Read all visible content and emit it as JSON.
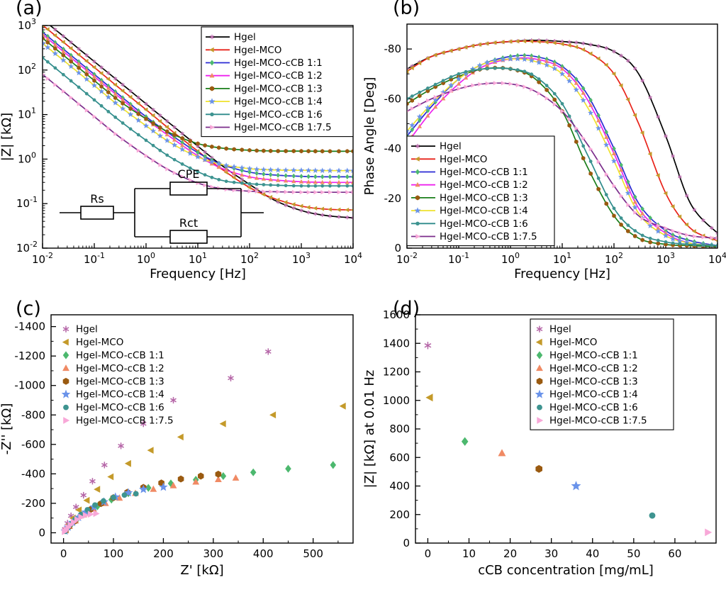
{
  "chart_data": {
    "type": "multi-panel",
    "background": "#ffffff",
    "series_styles": [
      {
        "name": "Hgel",
        "line_color": "#000000",
        "line_style": "solid",
        "marker": "asterisk",
        "marker_color": "#b565a7"
      },
      {
        "name": "Hgel-MCO",
        "line_color": "#e8231a",
        "line_style": "solid",
        "marker": "triangle-left",
        "marker_color": "#c49a2a"
      },
      {
        "name": "Hgel-MCO-cCB 1:1",
        "line_color": "#2a2ad4",
        "line_style": "solid",
        "marker": "diamond",
        "marker_color": "#4cb86e"
      },
      {
        "name": "Hgel-MCO-cCB 1:2",
        "line_color": "#ee22ee",
        "line_style": "solid",
        "marker": "triangle-up",
        "marker_color": "#f08a64"
      },
      {
        "name": "Hgel-MCO-cCB 1:3",
        "line_color": "#1a7e1a",
        "line_style": "solid",
        "marker": "hexagon",
        "marker_color": "#9a5a10"
      },
      {
        "name": "Hgel-MCO-cCB 1:4",
        "line_color": "#efe22e",
        "line_style": "solid",
        "marker": "star",
        "marker_color": "#6a93ea"
      },
      {
        "name": "Hgel-MCO-cCB 1:6",
        "line_color": "#2e8b8b",
        "line_style": "solid",
        "marker": "circle",
        "marker_color": "#3e9490"
      },
      {
        "name": "Hgel-MCO-cCB 1:7.5",
        "line_color": "#7b2d8b",
        "line_style": "solid",
        "marker": "triangle-right",
        "marker_color": "#f8a8d8"
      }
    ],
    "panels": [
      {
        "id": "a",
        "label": "(a)",
        "type": "line+scatter",
        "xlabel": "Frequency [Hz]",
        "ylabel": "|Z| [kΩ]",
        "x_axis": {
          "scale": "log",
          "min": 0.01,
          "max": 10000,
          "ticks": [
            -2,
            -1,
            0,
            1,
            2,
            3,
            4
          ],
          "tick_format": "pow10"
        },
        "y_axis": {
          "scale": "log",
          "min": 0.01,
          "max": 1000,
          "ticks": [
            -2,
            -1,
            0,
            1,
            2,
            3
          ],
          "tick_format": "pow10"
        },
        "legend_position": "top-right",
        "inset_circuit": {
          "labels": [
            "Rs",
            "CPE",
            "Rct"
          ]
        },
        "x": [
          0.01,
          0.03,
          0.1,
          0.3,
          1,
          3,
          10,
          30,
          100,
          300,
          1000,
          3000,
          10000
        ],
        "series": [
          {
            "y": [
              1380,
              490,
              155,
              55,
              17.4,
              6.1,
              1.95,
              0.7,
              0.27,
              0.12,
              0.07,
              0.054,
              0.048
            ]
          },
          {
            "y": [
              1020,
              360,
              115,
              40,
              12.9,
              4.5,
              1.51,
              0.58,
              0.23,
              0.13,
              0.088,
              0.075,
              0.072
            ]
          },
          {
            "y": [
              710,
              251,
              80,
              28,
              8.95,
              3.55,
              1.4,
              0.75,
              0.51,
              0.44,
              0.41,
              0.4,
              0.4
            ]
          },
          {
            "y": [
              630,
              222,
              71,
              25,
              7.9,
              3.1,
              1.19,
              0.61,
              0.4,
              0.34,
              0.31,
              0.3,
              0.3
            ]
          },
          {
            "y": [
              520,
              183,
              58,
              20.6,
              8.0,
              3.8,
              2.23,
              1.76,
              1.58,
              1.52,
              1.51,
              1.5,
              1.5
            ]
          },
          {
            "y": [
              400,
              141,
              45,
              15.8,
              5.6,
              2.32,
              1.12,
              0.75,
              0.61,
              0.57,
              0.56,
              0.55,
              0.55
            ]
          },
          {
            "y": [
              190,
              67,
              21.3,
              7.5,
              2.64,
              1.09,
              0.52,
              0.33,
              0.28,
              0.26,
              0.25,
              0.25,
              0.25
            ]
          },
          {
            "y": [
              80,
              28.3,
              9.0,
              3.2,
              1.19,
              0.54,
              0.29,
              0.215,
              0.19,
              0.185,
              0.18,
              0.18,
              0.18
            ]
          }
        ]
      },
      {
        "id": "b",
        "label": "(b)",
        "type": "line+scatter",
        "xlabel": "Frequency [Hz]",
        "ylabel": "Phase Angle [Deg]",
        "x_axis": {
          "scale": "log",
          "min": 0.01,
          "max": 10000,
          "ticks": [
            -2,
            -1,
            0,
            1,
            2,
            3,
            4
          ],
          "tick_format": "pow10"
        },
        "y_axis": {
          "scale": "linear",
          "min": 0,
          "max": -90,
          "ticks": [
            -80,
            -60,
            -40,
            -20,
            0
          ],
          "tick_format": "plain"
        },
        "legend_position": "bottom-left",
        "x": [
          0.01,
          0.03,
          0.1,
          0.3,
          1,
          3,
          10,
          30,
          100,
          300,
          1000,
          3000,
          10000
        ],
        "series": [
          {
            "y": [
              -72,
              -77,
              -80,
              -82,
              -83,
              -83.5,
              -83,
              -82,
              -79,
              -70,
              -45,
              -18,
              -6
            ]
          },
          {
            "y": [
              -71,
              -77,
              -80,
              -82,
              -83,
              -83,
              -82,
              -79,
              -70,
              -50,
              -22,
              -8,
              -3
            ]
          },
          {
            "y": [
              -45,
              -57,
              -68,
              -74,
              -77,
              -77,
              -73,
              -62,
              -40,
              -18,
              -7,
              -3,
              -1
            ]
          },
          {
            "y": [
              -42,
              -55,
              -66,
              -73,
              -76,
              -76,
              -72,
              -60,
              -38,
              -16,
              -6,
              -2,
              -1
            ]
          },
          {
            "y": [
              -58,
              -64,
              -69,
              -72,
              -72,
              -68,
              -55,
              -33,
              -13,
              -4,
              -1.5,
              -1,
              -0.5
            ]
          },
          {
            "y": [
              -47,
              -58,
              -68,
              -74,
              -76,
              -75,
              -70,
              -57,
              -35,
              -14,
              -5,
              -2,
              -1
            ]
          },
          {
            "y": [
              -60,
              -65,
              -70,
              -72,
              -72,
              -69,
              -58,
              -38,
              -16,
              -6,
              -2.5,
              -1.5,
              -1
            ]
          },
          {
            "y": [
              -55,
              -60,
              -64,
              -66,
              -66,
              -63,
              -55,
              -42,
              -25,
              -13,
              -8,
              -5,
              -4
            ]
          }
        ]
      },
      {
        "id": "c",
        "label": "(c)",
        "type": "scatter",
        "xlabel": "Z' [kΩ]",
        "ylabel": "-Z'' [kΩ]",
        "x_axis": {
          "scale": "linear",
          "min": -25,
          "max": 580,
          "ticks": [
            0,
            100,
            200,
            300,
            400,
            500
          ],
          "tick_format": "plain"
        },
        "y_axis": {
          "scale": "linear",
          "min": -70,
          "max": 1480,
          "ticks": [
            0,
            200,
            400,
            600,
            800,
            1000,
            1200,
            1400
          ],
          "tick_labels": [
            "0",
            "-200",
            "-400",
            "-600",
            "-800",
            "-1000",
            "-1200",
            "-1400"
          ],
          "tick_format": "plain"
        },
        "legend_position": "top-left",
        "series": [
          {
            "x": [
              3,
              8,
              15,
              25,
              40,
              58,
              82,
              115,
              160,
              220,
              335,
              410
            ],
            "y": [
              25,
              65,
              115,
              175,
              255,
              350,
              460,
              590,
              740,
              900,
              1050,
              1230
            ]
          },
          {
            "x": [
              4,
              10,
              19,
              31,
              47,
              68,
              95,
              130,
              175,
              235,
              320,
              420,
              560
            ],
            "y": [
              20,
              55,
              100,
              155,
              220,
              295,
              380,
              470,
              560,
              650,
              740,
              800,
              860
            ]
          },
          {
            "x": [
              5,
              14,
              27,
              45,
              68,
              96,
              130,
              170,
              215,
              265,
              320,
              380,
              450,
              540
            ],
            "y": [
              18,
              50,
              90,
              135,
              180,
              225,
              268,
              305,
              335,
              360,
              385,
              410,
              435,
              460
            ]
          },
          {
            "x": [
              4,
              12,
              24,
              40,
              60,
              84,
              112,
              144,
              180,
              220,
              265,
              310,
              345
            ],
            "y": [
              15,
              45,
              82,
              122,
              162,
              200,
              236,
              268,
              296,
              320,
              345,
              362,
              372
            ]
          },
          {
            "x": [
              4,
              11,
              22,
              36,
              54,
              75,
              100,
              128,
              160,
              196,
              235,
              275,
              310
            ],
            "y": [
              15,
              42,
              78,
              118,
              158,
              198,
              238,
              275,
              308,
              338,
              365,
              385,
              398
            ]
          },
          {
            "x": [
              3,
              9,
              18,
              30,
              44,
              61,
              81,
              104,
              130,
              160,
              200
            ],
            "y": [
              12,
              38,
              70,
              105,
              140,
              175,
              210,
              243,
              272,
              295,
              310
            ]
          },
          {
            "x": [
              3,
              8,
              15,
              24,
              35,
              48,
              63,
              80,
              100,
              122,
              145
            ],
            "y": [
              10,
              32,
              60,
              92,
              124,
              156,
              188,
              216,
              240,
              256,
              265
            ]
          },
          {
            "x": [
              2,
              5,
              9,
              14,
              20,
              27,
              35,
              44,
              54,
              65
            ],
            "y": [
              8,
              20,
              36,
              54,
              72,
              90,
              106,
              118,
              126,
              130
            ]
          }
        ]
      },
      {
        "id": "d",
        "label": "(d)",
        "type": "scatter",
        "xlabel": "cCB concentration [mg/mL]",
        "ylabel": "|Z| [kΩ] at 0.01 Hz",
        "x_axis": {
          "scale": "linear",
          "min": -3,
          "max": 70,
          "ticks": [
            0,
            10,
            20,
            30,
            40,
            50,
            60
          ],
          "tick_format": "plain"
        },
        "y_axis": {
          "scale": "linear",
          "min": 0,
          "max": 1600,
          "ticks": [
            0,
            200,
            400,
            600,
            800,
            1000,
            1200,
            1400,
            1600
          ],
          "tick_format": "plain"
        },
        "legend_position": "top-right",
        "series": [
          {
            "x": [
              0
            ],
            "y": [
              1385
            ]
          },
          {
            "x": [
              0.5
            ],
            "y": [
              1020
            ]
          },
          {
            "x": [
              9
            ],
            "y": [
              712
            ]
          },
          {
            "x": [
              18
            ],
            "y": [
              630
            ]
          },
          {
            "x": [
              27
            ],
            "y": [
              520
            ]
          },
          {
            "x": [
              36
            ],
            "y": [
              400
            ]
          },
          {
            "x": [
              54.5
            ],
            "y": [
              193
            ]
          },
          {
            "x": [
              68
            ],
            "y": [
              75
            ]
          }
        ]
      }
    ]
  }
}
